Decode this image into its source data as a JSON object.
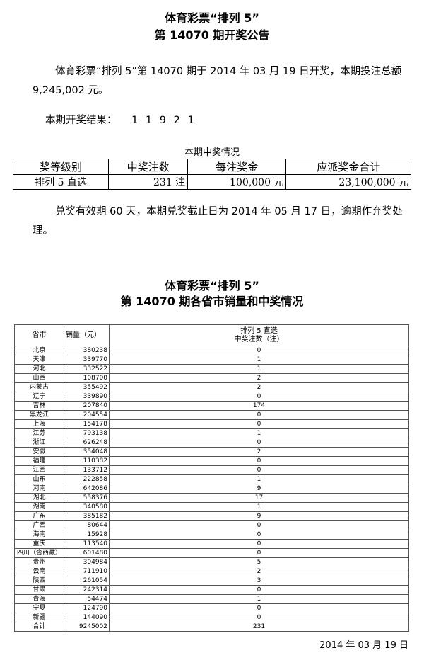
{
  "title1": "体育彩票“排列 5”",
  "title2": "第 14070 期开奖公告",
  "para1": "体育彩票“排列 5”第 14070 期于 2014 年 03 月 19 日开奖，本期投注总额 9,245,002 元。",
  "result_label": "本期开奖结果：",
  "result_numbers": "1 1 9 2 1",
  "prize_caption": "本期中奖情况",
  "prize_headers": [
    "奖等级别",
    "中奖注数",
    "每注奖金",
    "应派奖金合计"
  ],
  "prize_row": [
    "排列 5 直选",
    "231 注",
    "100,000 元",
    "23,100,000 元"
  ],
  "para2": "兑奖有效期 60 天，本期兑奖截止日为 2014 年 05 月 17 日，逾期作弃奖处理。",
  "title3": "体育彩票“排列 5”",
  "title4": "第 14070 期各省市销量和中奖情况",
  "table_headers": [
    "省市",
    "销量（元）",
    "排列 5 直选",
    "中奖注数（注）"
  ],
  "rows": [
    [
      "北京",
      "380238",
      "0"
    ],
    [
      "天津",
      "339770",
      "1"
    ],
    [
      "河北",
      "332522",
      "1"
    ],
    [
      "山西",
      "108700",
      "2"
    ],
    [
      "内蒙古",
      "355492",
      "2"
    ],
    [
      "辽宁",
      "339890",
      "0"
    ],
    [
      "吉林",
      "207840",
      "174"
    ],
    [
      "黑龙江",
      "204554",
      "0"
    ],
    [
      "上海",
      "154178",
      "0"
    ],
    [
      "江苏",
      "793138",
      "1"
    ],
    [
      "浙江",
      "626248",
      "0"
    ],
    [
      "安徽",
      "354048",
      "2"
    ],
    [
      "福建",
      "110382",
      "0"
    ],
    [
      "江西",
      "133712",
      "0"
    ],
    [
      "山东",
      "222858",
      "1"
    ],
    [
      "河南",
      "642086",
      "9"
    ],
    [
      "湖北",
      "558376",
      "17"
    ],
    [
      "湖南",
      "340580",
      "1"
    ],
    [
      "广东",
      "385182",
      "9"
    ],
    [
      "广西",
      "80644",
      "0"
    ],
    [
      "海南",
      "15928",
      "0"
    ],
    [
      "重庆",
      "113540",
      "0"
    ],
    [
      "四川（含西藏）",
      "601480",
      "0"
    ],
    [
      "贵州",
      "304984",
      "5"
    ],
    [
      "云南",
      "711910",
      "2"
    ],
    [
      "陕西",
      "261054",
      "3"
    ],
    [
      "甘肃",
      "242314",
      "0"
    ],
    [
      "青海",
      "54474",
      "1"
    ],
    [
      "宁夏",
      "124790",
      "0"
    ],
    [
      "新疆",
      "144090",
      "0"
    ],
    [
      "合计",
      "9245002",
      "231"
    ]
  ],
  "date": "2014 年 03 月 19 日"
}
